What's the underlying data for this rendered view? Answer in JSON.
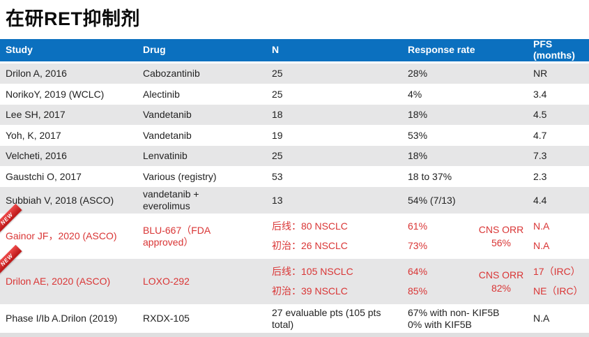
{
  "title": "在研RET抑制剂",
  "ribbon_label": "NEW",
  "colors": {
    "header_blue": "#0b70bf",
    "row_gray": "#e6e6e7",
    "highlight_red": "#d93535",
    "ribbon_red": "#c01c1c"
  },
  "table": {
    "headers": [
      "Study",
      "Drug",
      "N",
      "Response rate",
      "PFS (months)"
    ],
    "rows": [
      {
        "study": "Drilon A, 2016",
        "drug": "Cabozantinib",
        "n": "25",
        "response": "28%",
        "pfs": "NR"
      },
      {
        "study": "NorikoY, 2019 (WCLC)",
        "drug": "Alectinib",
        "n": "25",
        "response": "4%",
        "pfs": "3.4"
      },
      {
        "study": "Lee SH, 2017",
        "drug": "Vandetanib",
        "n": "18",
        "response": "18%",
        "pfs": "4.5"
      },
      {
        "study": "Yoh, K, 2017",
        "drug": "Vandetanib",
        "n": "19",
        "response": "53%",
        "pfs": "4.7"
      },
      {
        "study": "Velcheti, 2016",
        "drug": "Lenvatinib",
        "n": "25",
        "response": "18%",
        "pfs": "7.3"
      },
      {
        "study": "Gaustchi O, 2017",
        "drug": "Various (registry)",
        "n": "53",
        "response": "18 to 37%",
        "pfs": "2.3"
      },
      {
        "study": "Subbiah V, 2018 (ASCO)",
        "drug_lines": [
          "vandetanib +",
          "everolimus"
        ],
        "n": "13",
        "response": "54% (7/13)",
        "pfs": "4.4"
      },
      {
        "study": "Gainor JF，2020 (ASCO)",
        "drug_lines": [
          "BLU-667（FDA",
          "approved）"
        ],
        "n_lines": [
          "后线：80 NSCLC",
          "初治：26 NSCLC"
        ],
        "response_lines": [
          "61%",
          "73%"
        ],
        "cns_lines": [
          "CNS ORR",
          "56%"
        ],
        "pfs_lines": [
          "N.A",
          "N.A"
        ],
        "badge": "NEW"
      },
      {
        "study": "Drilon AE, 2020 (ASCO)",
        "drug": "LOXO-292",
        "n_lines": [
          "后线：105 NSCLC",
          "初治：39 NSCLC"
        ],
        "response_lines": [
          "64%",
          "85%"
        ],
        "cns_lines": [
          "CNS ORR",
          "82%"
        ],
        "pfs_lines": [
          "17（IRC）",
          "NE（IRC）"
        ],
        "badge": "NEW"
      },
      {
        "study": "Phase I/Ib A.Drilon (2019)",
        "drug": "RXDX-105",
        "n": "27 evaluable pts (105 pts total)",
        "response_lines": [
          "67% with non- KIF5B",
          "0% with KIF5B"
        ],
        "pfs": "N.A"
      }
    ]
  }
}
